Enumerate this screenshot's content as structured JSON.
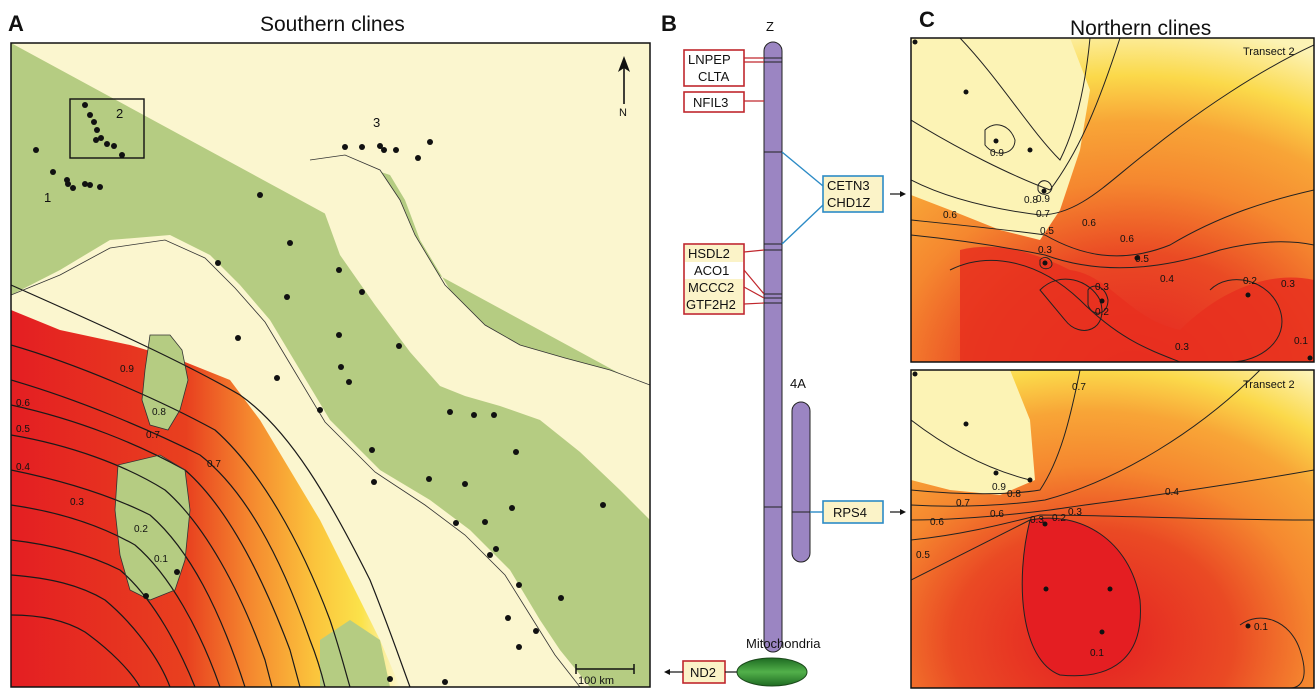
{
  "panel_a": {
    "letter": "A",
    "title": "Southern clines",
    "region_labels": [
      "1",
      "2",
      "3"
    ],
    "north_label": "N",
    "scale_label": "100 km",
    "contour_labels": [
      "0.9",
      "0.8",
      "0.7",
      "0.7",
      "0.6",
      "0.5",
      "0.4",
      "0.3",
      "0.2",
      "0.1"
    ]
  },
  "panel_b": {
    "letter": "B",
    "chromosome_z": "Z",
    "chromosome_4a": "4A",
    "mitochondria": "Mitochondria",
    "genes_red_top": [
      "LNPEP",
      "CLTA"
    ],
    "gene_nfil3": "NFIL3",
    "genes_blue_1": [
      "CETN3",
      "CHD1Z"
    ],
    "genes_cluster": [
      "HSDL2",
      "ACO1",
      "MCCC2",
      "GTF2H2"
    ],
    "gene_rps4": "RPS4",
    "gene_nd2": "ND2"
  },
  "panel_c": {
    "letter": "C",
    "title": "Northern clines",
    "top_transect": "Transect 2",
    "bottom_transect": "Transect 2",
    "top_contour_labels": [
      "0.9",
      "0.9",
      "0.8",
      "0.7",
      "0.6",
      "0.6",
      "0.5",
      "0.6",
      "0.5",
      "0.4",
      "0.3",
      "0.3",
      "0.3",
      "0.2",
      "0.2",
      "0.3",
      "0.1"
    ],
    "bottom_contour_labels": [
      "0.7",
      "0.9",
      "0.8",
      "0.7",
      "0.6",
      "0.6",
      "0.4",
      "0.3",
      "0.3",
      "0.2",
      "0.5",
      "0.1",
      "0.1"
    ]
  },
  "colors": {
    "land": "#b5cc82",
    "sea_light": "#fbf6cf",
    "yellow": "#fbe24a",
    "orange": "#f6a03a",
    "red": "#e41e22",
    "chromosome": "#9b85c2",
    "red_box": "#c0272d",
    "blue_box": "#2c8bc6",
    "mito": "#2a7a2a"
  }
}
